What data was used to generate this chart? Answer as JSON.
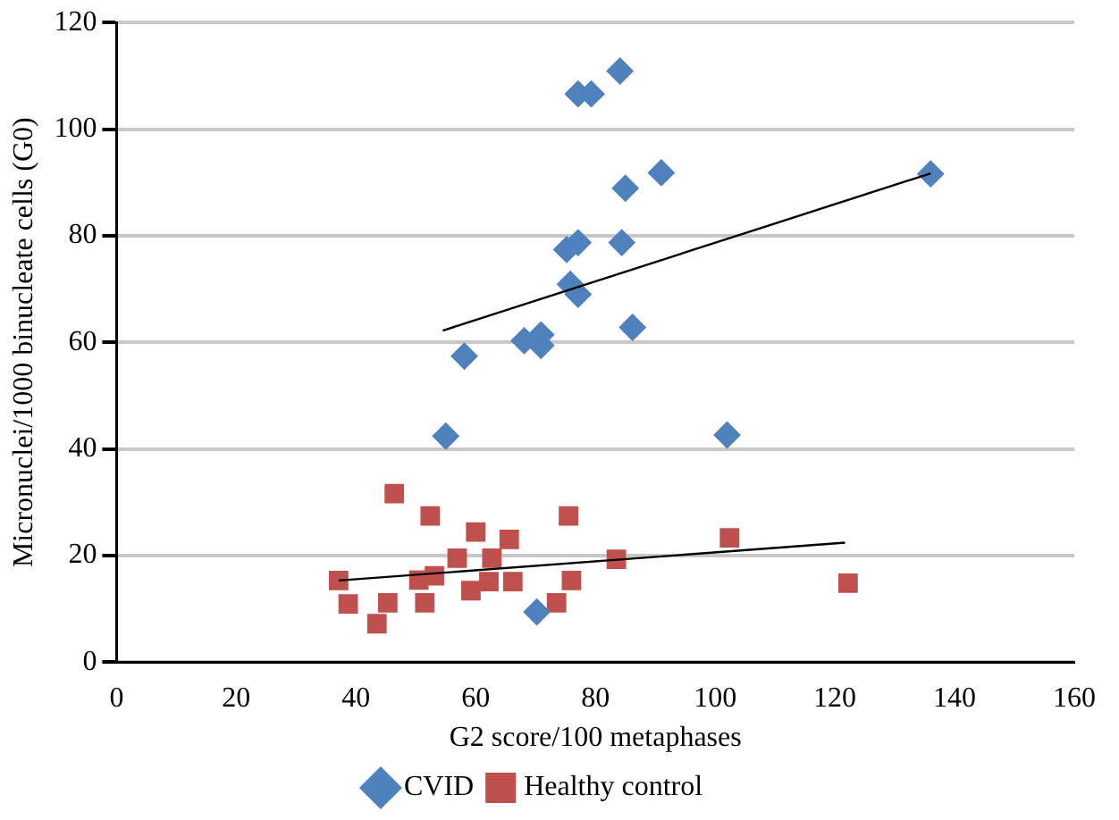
{
  "chart_data": {
    "type": "scatter",
    "xlabel": "G2 score/100 metaphases",
    "ylabel": "Micronuclei/1000 binucleate cells (G0)",
    "xlim": [
      0,
      160
    ],
    "xticks": [
      0,
      20,
      40,
      60,
      80,
      100,
      120,
      140,
      160
    ],
    "ylim": [
      0,
      120
    ],
    "yticks": [
      0,
      20,
      40,
      60,
      80,
      100,
      120
    ],
    "grid": "y",
    "legend": "bottom",
    "series": [
      {
        "name": "CVID",
        "color": "#4f81bd",
        "marker": "diamond",
        "x": [
          84.1,
          77.1,
          79.3,
          91,
          85,
          84.4,
          75.2,
          77.1,
          75.8,
          77.1,
          86.2,
          58.1,
          68.1,
          70.9,
          70.9,
          55,
          102,
          70.2,
          136
        ],
        "values": [
          110.9,
          106.6,
          106.6,
          91.8,
          88.9,
          78.7,
          77.4,
          78.7,
          70.9,
          69,
          62.8,
          57.4,
          60.3,
          61.4,
          59.4,
          42.4,
          42.6,
          9.4,
          91.6
        ]
      },
      {
        "name": "Healthy control",
        "color": "#c0504d",
        "marker": "square",
        "x": [
          46.4,
          52.4,
          60,
          65.6,
          75.5,
          56.9,
          62.7,
          83.5,
          102.4,
          50.5,
          53.1,
          59.2,
          62.2,
          66.2,
          76,
          45.3,
          51.5,
          73.5,
          43.5,
          37.1,
          38.7,
          122.2
        ],
        "values": [
          31.6,
          27.4,
          24.4,
          23,
          27.4,
          19.5,
          19.5,
          19.3,
          23.3,
          15.4,
          16.2,
          13.4,
          15.1,
          15.1,
          15.3,
          11.1,
          11.1,
          11.1,
          7.2,
          15.3,
          10.9,
          14.8
        ]
      },
      {
        "type": "line",
        "color": "#000000",
        "marker": "none",
        "x": [
          54.5,
          136
        ],
        "values": [
          62.2,
          91.7
        ]
      },
      {
        "type": "line",
        "color": "#000000",
        "marker": "none",
        "x": [
          37.1,
          121.7
        ],
        "values": [
          15.3,
          22.4
        ]
      }
    ]
  }
}
